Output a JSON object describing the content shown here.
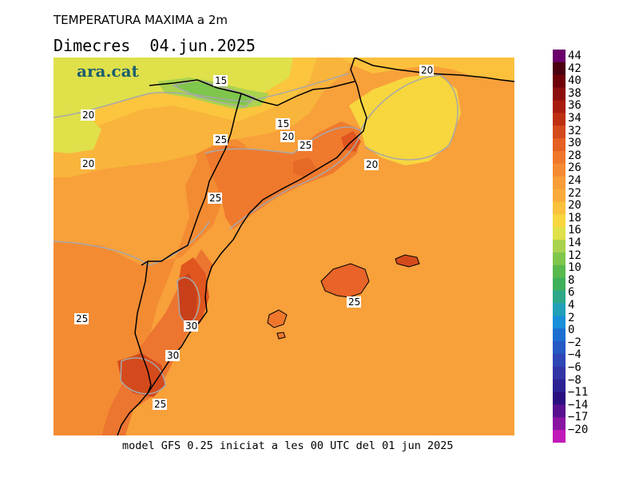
{
  "title": "TEMPERATURA MAXIMA a 2m",
  "date_label": "Dimecres  04.jun.2025",
  "logo": "ara.cat",
  "footer": "model GFS 0.25 iniciat a les 00 UTC del 01 jun 2025",
  "colorbar": {
    "labels": [
      "44",
      "42",
      "40",
      "38",
      "36",
      "34",
      "32",
      "30",
      "28",
      "26",
      "24",
      "22",
      "20",
      "18",
      "16",
      "14",
      "12",
      "10",
      "8",
      "6",
      "4",
      "2",
      "0",
      "−2",
      "−4",
      "−6",
      "−8",
      "−11",
      "−14",
      "−17",
      "−20"
    ],
    "colors": [
      "#6a006a",
      "#4b0010",
      "#6e0008",
      "#8c0e0e",
      "#a81c10",
      "#bf3012",
      "#d44a1c",
      "#e65f22",
      "#ef772c",
      "#f48a34",
      "#f89c38",
      "#faab3a",
      "#fbc13c",
      "#f7d63e",
      "#dfe04a",
      "#a9d34e",
      "#7fc64c",
      "#58b94c",
      "#3fb05a",
      "#2fa88a",
      "#22a0b8",
      "#1a8ed8",
      "#1c6fd0",
      "#2559c4",
      "#2f46b6",
      "#3234a6",
      "#2c2294",
      "#2a0f80",
      "#58108e",
      "#8a14a2",
      "#c21ab8"
    ]
  },
  "contour_labels": [
    {
      "text": "15"
    },
    {
      "text": "15"
    },
    {
      "text": "20"
    },
    {
      "text": "20"
    },
    {
      "text": "20"
    },
    {
      "text": "20"
    },
    {
      "text": "20"
    },
    {
      "text": "25"
    },
    {
      "text": "25"
    },
    {
      "text": "25"
    },
    {
      "text": "25"
    },
    {
      "text": "25"
    },
    {
      "text": "25"
    },
    {
      "text": "30"
    },
    {
      "text": "30"
    }
  ]
}
